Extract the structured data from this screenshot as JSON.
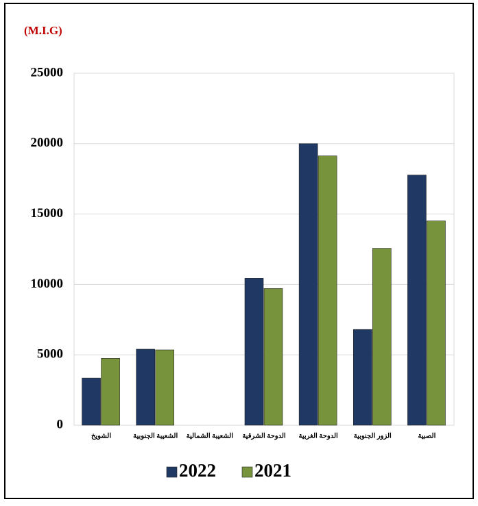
{
  "chart_data": {
    "type": "bar",
    "title": "(M.I.G)",
    "categories": [
      "الشويخ",
      "الشعيبة الجنوبية",
      "الشعيبة الشمالية",
      "الدوحة الشرقية",
      "الدوحة الغربية",
      "الزور الجنوبية",
      "الصبية"
    ],
    "series": [
      {
        "name": "2022",
        "color": "#1f3864",
        "values": [
          3350,
          5400,
          0,
          10440,
          20000,
          6800,
          17770
        ]
      },
      {
        "name": "2021",
        "color": "#77933c",
        "values": [
          4750,
          5350,
          0,
          9710,
          19130,
          12570,
          14510
        ]
      }
    ],
    "ylim": [
      0,
      25000
    ],
    "yticks": [
      0,
      5000,
      10000,
      15000,
      20000,
      25000
    ],
    "grid": true,
    "legend": "bottom"
  }
}
